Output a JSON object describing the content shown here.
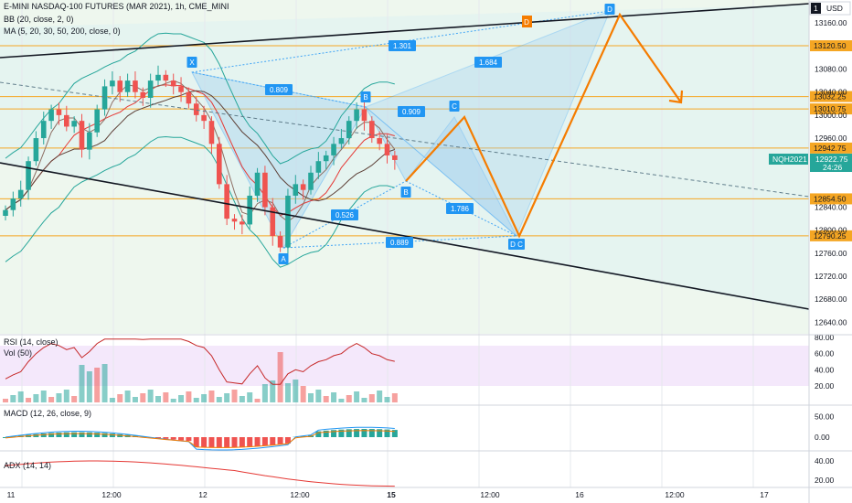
{
  "header": {
    "title": "E-MINI NASDAQ-100 FUTURES (MAR 2021), 1h, CME_MINI",
    "bb": "BB (20, close, 2, 0)",
    "ma": "MA (5, 20, 30, 50, 200, close, 0)",
    "currency": "USD",
    "currency_badge": "1"
  },
  "panels": {
    "rsi": "RSI (14, close)",
    "vol": "Vol (50)",
    "macd": "MACD (12, 26, close, 9)",
    "adx": "ADX (14, 14)"
  },
  "price_axis": {
    "ticks": [
      "13160.00",
      "13080.00",
      "13040.00",
      "13000.00",
      "12960.00",
      "12840.00",
      "12800.00",
      "12760.00",
      "12720.00",
      "12680.00",
      "12640.00"
    ],
    "level_labels": [
      {
        "text": "13120.50",
        "color": "#f5a623"
      },
      {
        "text": "13032.25",
        "color": "#f5a623"
      },
      {
        "text": "13010.75",
        "color": "#f5a623"
      },
      {
        "text": "12942.75",
        "color": "#f5a623"
      },
      {
        "text": "12854.50",
        "color": "#f5a623"
      },
      {
        "text": "12790.25",
        "color": "#f5a623"
      }
    ],
    "current_price": "12922.75",
    "countdown": "24:26",
    "symbol": "NQH2021"
  },
  "rsi_axis": [
    "80.00",
    "60.00",
    "40.00",
    "20.00"
  ],
  "macd_axis": [
    "50.00",
    "0.00"
  ],
  "adx_axis": [
    "40.00",
    "20.00"
  ],
  "time_axis": [
    "11",
    "12:00",
    "12",
    "12:00",
    "15",
    "12:00",
    "16",
    "12:00",
    "17"
  ],
  "pattern": {
    "points": [
      "X",
      "A",
      "B",
      "C",
      "D",
      "B",
      "D C",
      "D"
    ],
    "ratios": [
      "0.809",
      "1.301",
      "1.684",
      "0.909",
      "0.526",
      "1.786",
      "0.889"
    ]
  },
  "colors": {
    "up": "#26a69a",
    "down": "#ef5350",
    "level": "#f5a623",
    "pattern": "#2196f3",
    "projection": "#f57c00"
  },
  "chart_data": {
    "type": "candlestick",
    "ylim": [
      12620,
      13200
    ],
    "candles_approx_close": [
      12835,
      12855,
      12870,
      12920,
      12960,
      12990,
      13010,
      13000,
      12980,
      12990,
      12940,
      12970,
      13010,
      13050,
      13060,
      13040,
      13060,
      13040,
      13030,
      13060,
      13070,
      13060,
      13050,
      13040,
      13020,
      13000,
      12990,
      12950,
      12880,
      12820,
      12815,
      12810,
      12860,
      12900,
      12840,
      12790,
      12770,
      12860,
      12880,
      12870,
      12900,
      12920,
      12930,
      12950,
      12960,
      12990,
      13010,
      12990,
      12960,
      12950,
      12930,
      12922
    ],
    "levels": [
      13120.5,
      13032.25,
      13010.75,
      12942.75,
      12854.5,
      12790.25
    ],
    "rsi_range": [
      20,
      80
    ],
    "macd_range": [
      -25,
      60
    ],
    "adx_range": [
      10,
      50
    ]
  }
}
